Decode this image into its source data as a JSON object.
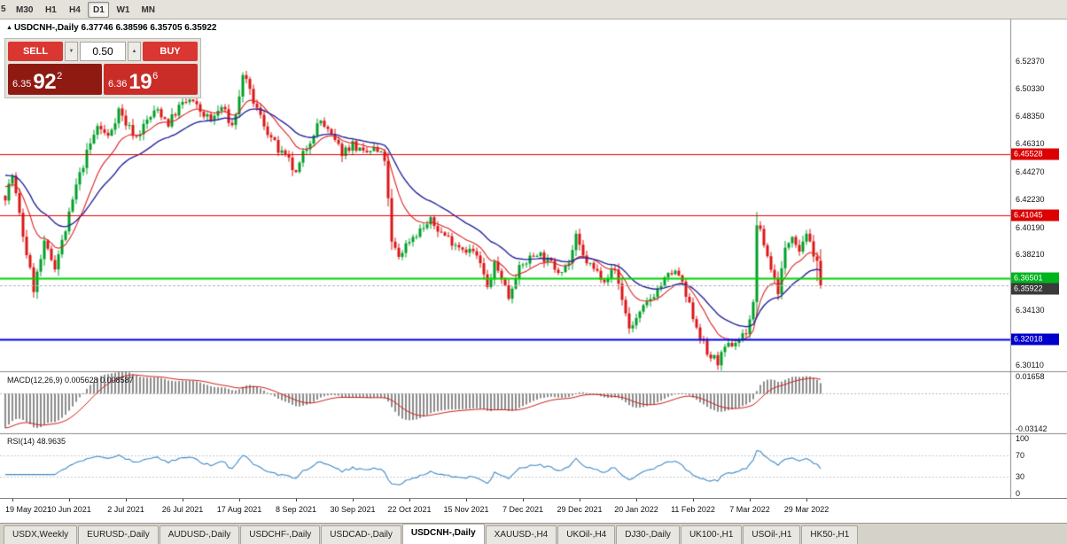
{
  "toolbar": {
    "partial_label": "5",
    "timeframes": [
      "M30",
      "H1",
      "H4",
      "D1",
      "W1",
      "MN"
    ],
    "active_timeframe": "D1"
  },
  "chart": {
    "collapse_icon": "▲",
    "symbol_period": "USDCNH-,Daily",
    "ohlc_text": "6.37746 6.38596 6.35705 6.35922"
  },
  "trade_panel": {
    "sell_label": "SELL",
    "buy_label": "BUY",
    "volume": "0.50",
    "volume_down_icon": "▼",
    "volume_up_icon": "▲",
    "sell_price": {
      "prefix": "6.35",
      "big": "92",
      "sup": "2"
    },
    "buy_price": {
      "prefix": "6.36",
      "big": "19",
      "sup": "6"
    }
  },
  "indicators": {
    "macd": {
      "name": "MACD(12,26,9)",
      "values": "0.005628 0.008587",
      "axis_labels": [
        {
          "text": "0.01658",
          "value": 0.01658
        },
        {
          "text": "-0.03142",
          "value": -0.03142
        }
      ]
    },
    "rsi": {
      "name": "RSI(14)",
      "value": "48.9635",
      "axis_labels": [
        {
          "text": "100",
          "value": 100
        },
        {
          "text": "70",
          "value": 70
        },
        {
          "text": "30",
          "value": 30
        },
        {
          "text": "0",
          "value": 0
        }
      ]
    }
  },
  "price_axis": {
    "labels": [
      {
        "text": "6.52370",
        "value": 6.5237
      },
      {
        "text": "6.50330",
        "value": 6.5033
      },
      {
        "text": "6.48350",
        "value": 6.4835
      },
      {
        "text": "6.46310",
        "value": 6.4631
      },
      {
        "text": "6.44270",
        "value": 6.4427
      },
      {
        "text": "6.42230",
        "value": 6.4223
      },
      {
        "text": "6.40190",
        "value": 6.4019
      },
      {
        "text": "6.38210",
        "value": 6.3821
      },
      {
        "text": "6.36170",
        "value": 6.3617
      },
      {
        "text": "6.34130",
        "value": 6.3413
      },
      {
        "text": "6.32090",
        "value": 6.3209
      },
      {
        "text": "6.30110",
        "value": 6.3011
      }
    ]
  },
  "date_axis": [
    {
      "label": "19 May 2021",
      "index": 2
    },
    {
      "label": "10 Jun 2021",
      "index": 18
    },
    {
      "label": "2 Jul 2021",
      "index": 34
    },
    {
      "label": "26 Jul 2021",
      "index": 50
    },
    {
      "label": "17 Aug 2021",
      "index": 66
    },
    {
      "label": "8 Sep 2021",
      "index": 82
    },
    {
      "label": "30 Sep 2021",
      "index": 98
    },
    {
      "label": "22 Oct 2021",
      "index": 114
    },
    {
      "label": "15 Nov 2021",
      "index": 130
    },
    {
      "label": "7 Dec 2021",
      "index": 146
    },
    {
      "label": "29 Dec 2021",
      "index": 162
    },
    {
      "label": "20 Jan 2022",
      "index": 178
    },
    {
      "label": "11 Feb 2022",
      "index": 194
    },
    {
      "label": "7 Mar 2022",
      "index": 210
    },
    {
      "label": "29 Mar 2022",
      "index": 226
    }
  ],
  "tabbar": {
    "tabs": [
      "USDX,Weekly",
      "EURUSD-,Daily",
      "AUDUSD-,Daily",
      "USDCHF-,Daily",
      "USDCAD-,Daily",
      "USDCNH-,Daily",
      "XAUUSD-,H4",
      "UKOil-,H4",
      "DJ30-,Daily",
      "UK100-,H1",
      "USOil-,H1",
      "HK50-,H1"
    ],
    "active_tab": "USDCNH-,Daily"
  },
  "chart_data": {
    "type": "candlestick",
    "title": "USDCNH-,Daily",
    "symbol": "USDCNH-",
    "timeframe": "Daily",
    "candle_count": 231,
    "last_candle": [
      6.37746,
      6.38596,
      6.35705,
      6.35922
    ],
    "price_scale": {
      "min": 6.296,
      "max": 6.554
    },
    "macd_scale": {
      "min": -0.032,
      "max": 0.017
    },
    "rsi_scale": {
      "min": 0,
      "max": 100
    },
    "price_path_anchors": [
      [
        0,
        6.425
      ],
      [
        2,
        6.44
      ],
      [
        5,
        6.396
      ],
      [
        8,
        6.357
      ],
      [
        11,
        6.389
      ],
      [
        14,
        6.374
      ],
      [
        17,
        6.4
      ],
      [
        20,
        6.432
      ],
      [
        23,
        6.456
      ],
      [
        26,
        6.476
      ],
      [
        29,
        6.468
      ],
      [
        32,
        6.488
      ],
      [
        34,
        6.478
      ],
      [
        37,
        6.468
      ],
      [
        40,
        6.48
      ],
      [
        43,
        6.488
      ],
      [
        46,
        6.478
      ],
      [
        49,
        6.49
      ],
      [
        52,
        6.495
      ],
      [
        55,
        6.487
      ],
      [
        58,
        6.48
      ],
      [
        61,
        6.49
      ],
      [
        64,
        6.476
      ],
      [
        66,
        6.496
      ],
      [
        67,
        6.515
      ],
      [
        69,
        6.5
      ],
      [
        71,
        6.488
      ],
      [
        74,
        6.472
      ],
      [
        77,
        6.458
      ],
      [
        80,
        6.45
      ],
      [
        82,
        6.44
      ],
      [
        84,
        6.455
      ],
      [
        87,
        6.472
      ],
      [
        89,
        6.48
      ],
      [
        92,
        6.468
      ],
      [
        95,
        6.457
      ],
      [
        98,
        6.463
      ],
      [
        101,
        6.455
      ],
      [
        104,
        6.459
      ],
      [
        107,
        6.452
      ],
      [
        109,
        6.39
      ],
      [
        111,
        6.381
      ],
      [
        114,
        6.393
      ],
      [
        117,
        6.4
      ],
      [
        120,
        6.406
      ],
      [
        123,
        6.398
      ],
      [
        126,
        6.392
      ],
      [
        129,
        6.387
      ],
      [
        132,
        6.384
      ],
      [
        134,
        6.375
      ],
      [
        136,
        6.357
      ],
      [
        138,
        6.374
      ],
      [
        140,
        6.366
      ],
      [
        142,
        6.351
      ],
      [
        144,
        6.368
      ],
      [
        147,
        6.377
      ],
      [
        150,
        6.384
      ],
      [
        153,
        6.377
      ],
      [
        156,
        6.371
      ],
      [
        159,
        6.376
      ],
      [
        161,
        6.394
      ],
      [
        163,
        6.38
      ],
      [
        166,
        6.371
      ],
      [
        169,
        6.365
      ],
      [
        172,
        6.371
      ],
      [
        174,
        6.35
      ],
      [
        176,
        6.328
      ],
      [
        179,
        6.338
      ],
      [
        182,
        6.35
      ],
      [
        185,
        6.36
      ],
      [
        188,
        6.369
      ],
      [
        190,
        6.367
      ],
      [
        192,
        6.351
      ],
      [
        195,
        6.33
      ],
      [
        198,
        6.309
      ],
      [
        201,
        6.304
      ],
      [
        204,
        6.315
      ],
      [
        207,
        6.32
      ],
      [
        209,
        6.326
      ],
      [
        211,
        6.345
      ],
      [
        212,
        6.405
      ],
      [
        214,
        6.39
      ],
      [
        216,
        6.372
      ],
      [
        218,
        6.356
      ],
      [
        220,
        6.385
      ],
      [
        222,
        6.398
      ],
      [
        224,
        6.386
      ],
      [
        226,
        6.399
      ],
      [
        228,
        6.378
      ],
      [
        230,
        6.35922
      ]
    ],
    "levels": [
      {
        "value": 6.45528,
        "label": "6.45528",
        "color": "#ee0000",
        "badge_bg": "#dd0000",
        "width": 1
      },
      {
        "value": 6.41045,
        "label": "6.41045",
        "color": "#ee0000",
        "badge_bg": "#dd0000",
        "width": 1
      },
      {
        "value": 6.36501,
        "label": "6.36501",
        "color": "#00d400",
        "badge_bg": "#00b41e",
        "width": 2
      },
      {
        "value": 6.32018,
        "label": "6.32018",
        "color": "#0000ee",
        "badge_bg": "#0000cc",
        "width": 2
      }
    ],
    "current_price": {
      "value": 6.35922,
      "label": "6.35922",
      "badge_bg": "#3a3a3a"
    },
    "moving_averages": [
      {
        "period": 12,
        "color": "#dd2222"
      },
      {
        "period": 26,
        "color": "#26269b"
      }
    ],
    "colors": {
      "candle_up": "#00a028",
      "candle_down": "#dc1616",
      "macd_histogram": "#8c8c8c",
      "macd_signal": "#cc2222",
      "rsi_line": "#4089c9",
      "button_red": "#da3732",
      "sell_box_bg": "#8e1a12",
      "buy_box_bg": "#ca2d28",
      "bid_line": "#b3b3b3"
    }
  }
}
